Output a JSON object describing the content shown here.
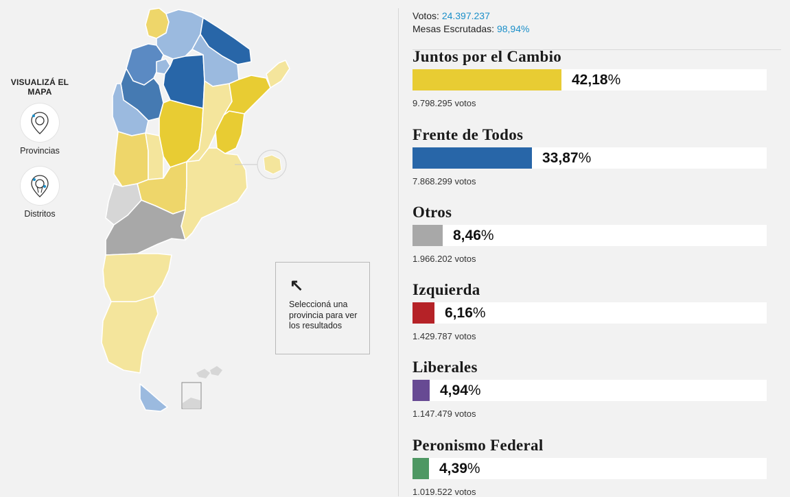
{
  "controls": {
    "title": "VISUALIZÁ EL MAPA",
    "provinces_label": "Provincias",
    "districts_label": "Distritos"
  },
  "hint": {
    "arrow_icon": "arrow-up-left-icon",
    "text": "Seleccioná una provincia para ver los resultados"
  },
  "summary": {
    "votes_label": "Votos:",
    "votes_value": "24.397.237",
    "tables_label": "Mesas Escrutadas:",
    "tables_value": "98,94%"
  },
  "colors": {
    "accent": "#1b8fc9",
    "juntos": "#e8cc33",
    "juntos_light": "#f4e59c",
    "juntos_mid": "#eed66a",
    "frente": "#2866a8",
    "frente_mid": "#5b8ac3",
    "frente_light": "#9bbadf",
    "otros": "#a8a8a8",
    "otros_light": "#d6d6d6"
  },
  "parties": [
    {
      "name": "Juntos por el Cambio",
      "percent": 42.18,
      "percent_label": "42,18",
      "votes": "9.798.295 votos",
      "color": "#e8cc33"
    },
    {
      "name": "Frente de Todos",
      "percent": 33.87,
      "percent_label": "33,87",
      "votes": "7.868.299 votos",
      "color": "#2866a8"
    },
    {
      "name": "Otros",
      "percent": 8.46,
      "percent_label": "8,46",
      "votes": "1.966.202 votos",
      "color": "#a8a8a8"
    },
    {
      "name": "Izquierda",
      "percent": 6.16,
      "percent_label": "6,16",
      "votes": "1.429.787 votos",
      "color": "#b52227"
    },
    {
      "name": "Liberales",
      "percent": 4.94,
      "percent_label": "4,94",
      "votes": "1.147.479 votos",
      "color": "#674a93"
    },
    {
      "name": "Peronismo Federal",
      "percent": 4.39,
      "percent_label": "4,39",
      "votes": "1.019.522 votos",
      "color": "#4e9863"
    }
  ],
  "percent_sign": "%"
}
